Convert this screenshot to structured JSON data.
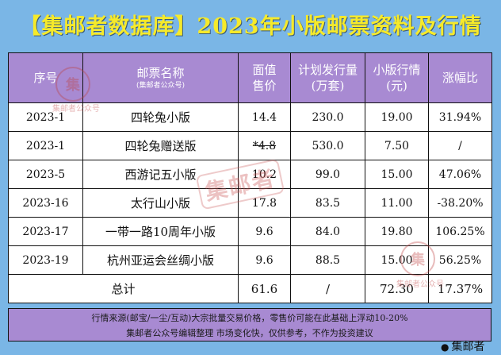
{
  "title": "【集邮者数据库】2023年小版邮票资料及行情",
  "headers": {
    "no": "序号",
    "name": "邮票名称",
    "name_sub": "(集邮者公众号)",
    "face_line1": "面值",
    "face_line2": "售价",
    "qty_line1": "计划发行量",
    "qty_line2": "(万套)",
    "price_line1": "小版行情",
    "price_line2": "(元)",
    "change": "涨幅比"
  },
  "rows": [
    {
      "no": "2023-1",
      "name": "四轮兔小版",
      "face": "14.4",
      "qty": "230.0",
      "price": "19.00",
      "change": "31.94%"
    },
    {
      "no": "2023-1",
      "name": "四轮兔赠送版",
      "face": "*4.8",
      "qty": "530.0",
      "price": "7.50",
      "change": "/"
    },
    {
      "no": "2023-5",
      "name": "西游记五小版",
      "face": "10.2",
      "qty": "99.0",
      "price": "15.00",
      "change": "47.06%"
    },
    {
      "no": "2023-16",
      "name": "太行山小版",
      "face": "17.8",
      "qty": "83.5",
      "price": "11.00",
      "change": "-38.20%"
    },
    {
      "no": "2023-17",
      "name": "一带一路10周年小版",
      "face": "9.6",
      "qty": "84.0",
      "price": "19.80",
      "change": "106.25%"
    },
    {
      "no": "2023-19",
      "name": "杭州亚运会丝绸小版",
      "face": "9.6",
      "qty": "88.5",
      "price": "15.00",
      "change": "56.25%"
    }
  ],
  "total": {
    "label": "总计",
    "face": "61.6",
    "qty": "/",
    "price": "72.30",
    "change": "17.37%"
  },
  "footer": {
    "line1": "行情来源(邮宝/一尘/互动)大宗批量交易价格，零售价可能在此基础上浮动10-20%",
    "line2": "集邮者公众号编辑整理 市场变化快，仅供参考，不作为投资建议"
  },
  "watermark": "集邮者",
  "seal_text": "集邮者公众号",
  "seal_glyph": "集",
  "brand": "集邮者",
  "icons": {
    "brand": "wechat-icon"
  }
}
